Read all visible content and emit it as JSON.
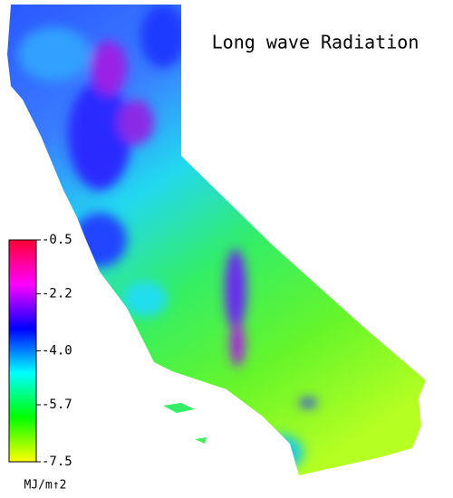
{
  "title": "Long wave Radiation",
  "colorbar": {
    "lim": [
      -7.5,
      -0.5
    ],
    "ticks": [
      -0.5,
      -2.2,
      {
        "value": -4,
        "label": "-4.0"
      },
      -5.7,
      -7.5
    ],
    "unit": "MJ/m↑2",
    "colors": [
      "#ffff00",
      "#00ff00",
      "#00ffff",
      "#0000ff",
      "#ff00ff",
      "#ff0033"
    ]
  }
}
